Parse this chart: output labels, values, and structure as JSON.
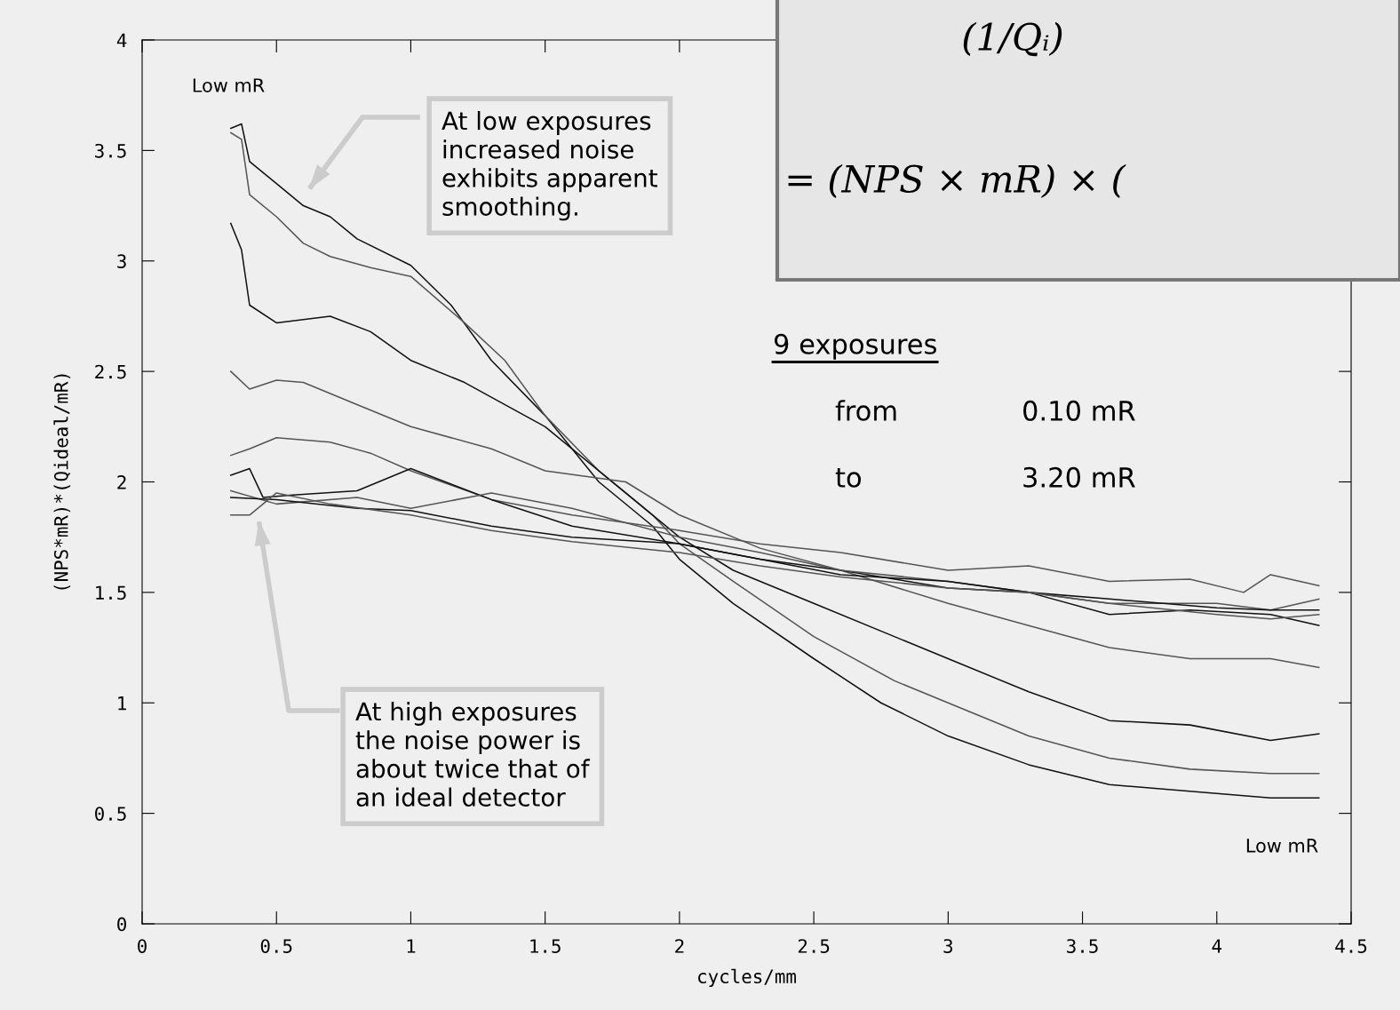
{
  "chart_data": {
    "type": "line",
    "xlabel": "cycles/mm",
    "ylabel": "(NPS*mR)*(Qideal/mR)",
    "xlim": [
      0,
      4.5
    ],
    "xticks": [
      0,
      0.5,
      1,
      1.5,
      2,
      2.5,
      3,
      3.5,
      4,
      4.5
    ],
    "ylim": [
      0,
      4
    ],
    "yticks": [
      0,
      0.5,
      1,
      1.5,
      2,
      2.5,
      3,
      3.5,
      4
    ],
    "grid": false,
    "legend": false,
    "marker": "none",
    "line_style": "solid",
    "series": [
      {
        "color": "#111111",
        "x": [
          0.33,
          0.37,
          0.4,
          0.5,
          0.6,
          0.7,
          0.8,
          1.0,
          1.15,
          1.3,
          1.5,
          1.7,
          1.9,
          2.0,
          2.2,
          2.5,
          2.75,
          3.0,
          3.3,
          3.6,
          3.9,
          4.2,
          4.38
        ],
        "values": [
          3.6,
          3.62,
          3.45,
          3.35,
          3.25,
          3.2,
          3.1,
          2.98,
          2.8,
          2.55,
          2.3,
          2.0,
          1.8,
          1.65,
          1.45,
          1.2,
          1.0,
          0.85,
          0.72,
          0.63,
          0.6,
          0.57,
          0.57
        ]
      },
      {
        "color": "#555555",
        "x": [
          0.33,
          0.37,
          0.4,
          0.5,
          0.6,
          0.7,
          0.85,
          1.0,
          1.2,
          1.35,
          1.5,
          1.7,
          1.9,
          2.0,
          2.2,
          2.5,
          2.8,
          3.0,
          3.3,
          3.6,
          3.9,
          4.2,
          4.38
        ],
        "values": [
          3.58,
          3.55,
          3.3,
          3.2,
          3.08,
          3.02,
          2.97,
          2.93,
          2.72,
          2.55,
          2.3,
          2.05,
          1.85,
          1.72,
          1.55,
          1.3,
          1.1,
          1.0,
          0.85,
          0.75,
          0.7,
          0.68,
          0.68
        ]
      },
      {
        "color": "#111111",
        "x": [
          0.33,
          0.37,
          0.4,
          0.5,
          0.7,
          0.85,
          1.0,
          1.2,
          1.5,
          1.8,
          2.0,
          2.2,
          2.5,
          2.8,
          3.0,
          3.3,
          3.6,
          3.9,
          4.2,
          4.38
        ],
        "values": [
          3.17,
          3.05,
          2.8,
          2.72,
          2.75,
          2.68,
          2.55,
          2.45,
          2.25,
          1.95,
          1.75,
          1.6,
          1.45,
          1.3,
          1.2,
          1.05,
          0.92,
          0.9,
          0.83,
          0.86
        ]
      },
      {
        "color": "#555555",
        "x": [
          0.33,
          0.4,
          0.5,
          0.6,
          0.8,
          1.0,
          1.3,
          1.5,
          1.8,
          2.0,
          2.3,
          2.6,
          3.0,
          3.3,
          3.6,
          3.9,
          4.2,
          4.38
        ],
        "values": [
          2.5,
          2.42,
          2.46,
          2.45,
          2.35,
          2.25,
          2.15,
          2.05,
          2.0,
          1.85,
          1.7,
          1.6,
          1.45,
          1.35,
          1.25,
          1.2,
          1.2,
          1.16
        ]
      },
      {
        "color": "#555555",
        "x": [
          0.33,
          0.4,
          0.5,
          0.7,
          0.85,
          1.0,
          1.3,
          1.6,
          2.0,
          2.3,
          2.6,
          3.0,
          3.3,
          3.6,
          3.9,
          4.1,
          4.2,
          4.38
        ],
        "values": [
          2.12,
          2.15,
          2.2,
          2.18,
          2.13,
          2.05,
          1.92,
          1.85,
          1.78,
          1.72,
          1.68,
          1.6,
          1.62,
          1.55,
          1.56,
          1.5,
          1.58,
          1.53
        ]
      },
      {
        "color": "#111111",
        "x": [
          0.33,
          0.4,
          0.45,
          0.55,
          0.8,
          1.0,
          1.3,
          1.6,
          2.0,
          2.3,
          2.6,
          3.0,
          3.3,
          3.6,
          3.9,
          4.2,
          4.38
        ],
        "values": [
          2.03,
          2.06,
          1.93,
          1.94,
          1.96,
          2.06,
          1.92,
          1.8,
          1.72,
          1.65,
          1.6,
          1.52,
          1.5,
          1.4,
          1.42,
          1.4,
          1.35
        ]
      },
      {
        "color": "#555555",
        "x": [
          0.33,
          0.5,
          0.8,
          1.0,
          1.3,
          1.6,
          2.0,
          2.3,
          2.6,
          3.0,
          3.3,
          3.6,
          4.0,
          4.2,
          4.38
        ],
        "values": [
          1.96,
          1.9,
          1.93,
          1.88,
          1.95,
          1.88,
          1.75,
          1.68,
          1.6,
          1.55,
          1.5,
          1.45,
          1.45,
          1.42,
          1.47
        ]
      },
      {
        "color": "#111111",
        "x": [
          0.33,
          0.5,
          0.8,
          1.0,
          1.3,
          1.6,
          2.0,
          2.3,
          2.6,
          3.0,
          3.3,
          3.6,
          4.0,
          4.2,
          4.38
        ],
        "values": [
          1.93,
          1.92,
          1.88,
          1.87,
          1.8,
          1.75,
          1.72,
          1.65,
          1.58,
          1.55,
          1.5,
          1.47,
          1.43,
          1.42,
          1.42
        ]
      },
      {
        "color": "#555555",
        "x": [
          0.33,
          0.4,
          0.5,
          0.7,
          1.0,
          1.3,
          1.6,
          2.0,
          2.3,
          2.6,
          3.0,
          3.3,
          3.6,
          4.0,
          4.2,
          4.38
        ],
        "values": [
          1.85,
          1.85,
          1.95,
          1.9,
          1.85,
          1.78,
          1.73,
          1.68,
          1.62,
          1.57,
          1.52,
          1.5,
          1.45,
          1.4,
          1.38,
          1.4
        ]
      }
    ],
    "annotations": [
      {
        "text": "Low mR",
        "x": 0.33,
        "y": 3.62
      },
      {
        "text": "Low mR",
        "x": 4.38,
        "y": 0.57
      },
      "At low exposures\nincreased noise\nexhibits apparent\nsmoothing.",
      "At high exposures\nthe noise power is\nabout twice that of\nan ideal detector",
      "9 exposures",
      "from",
      "0.10 mR",
      "to",
      "3.20 mR",
      "(1/Qᵢ)",
      "= (NPS × mR) × ("
    ]
  }
}
